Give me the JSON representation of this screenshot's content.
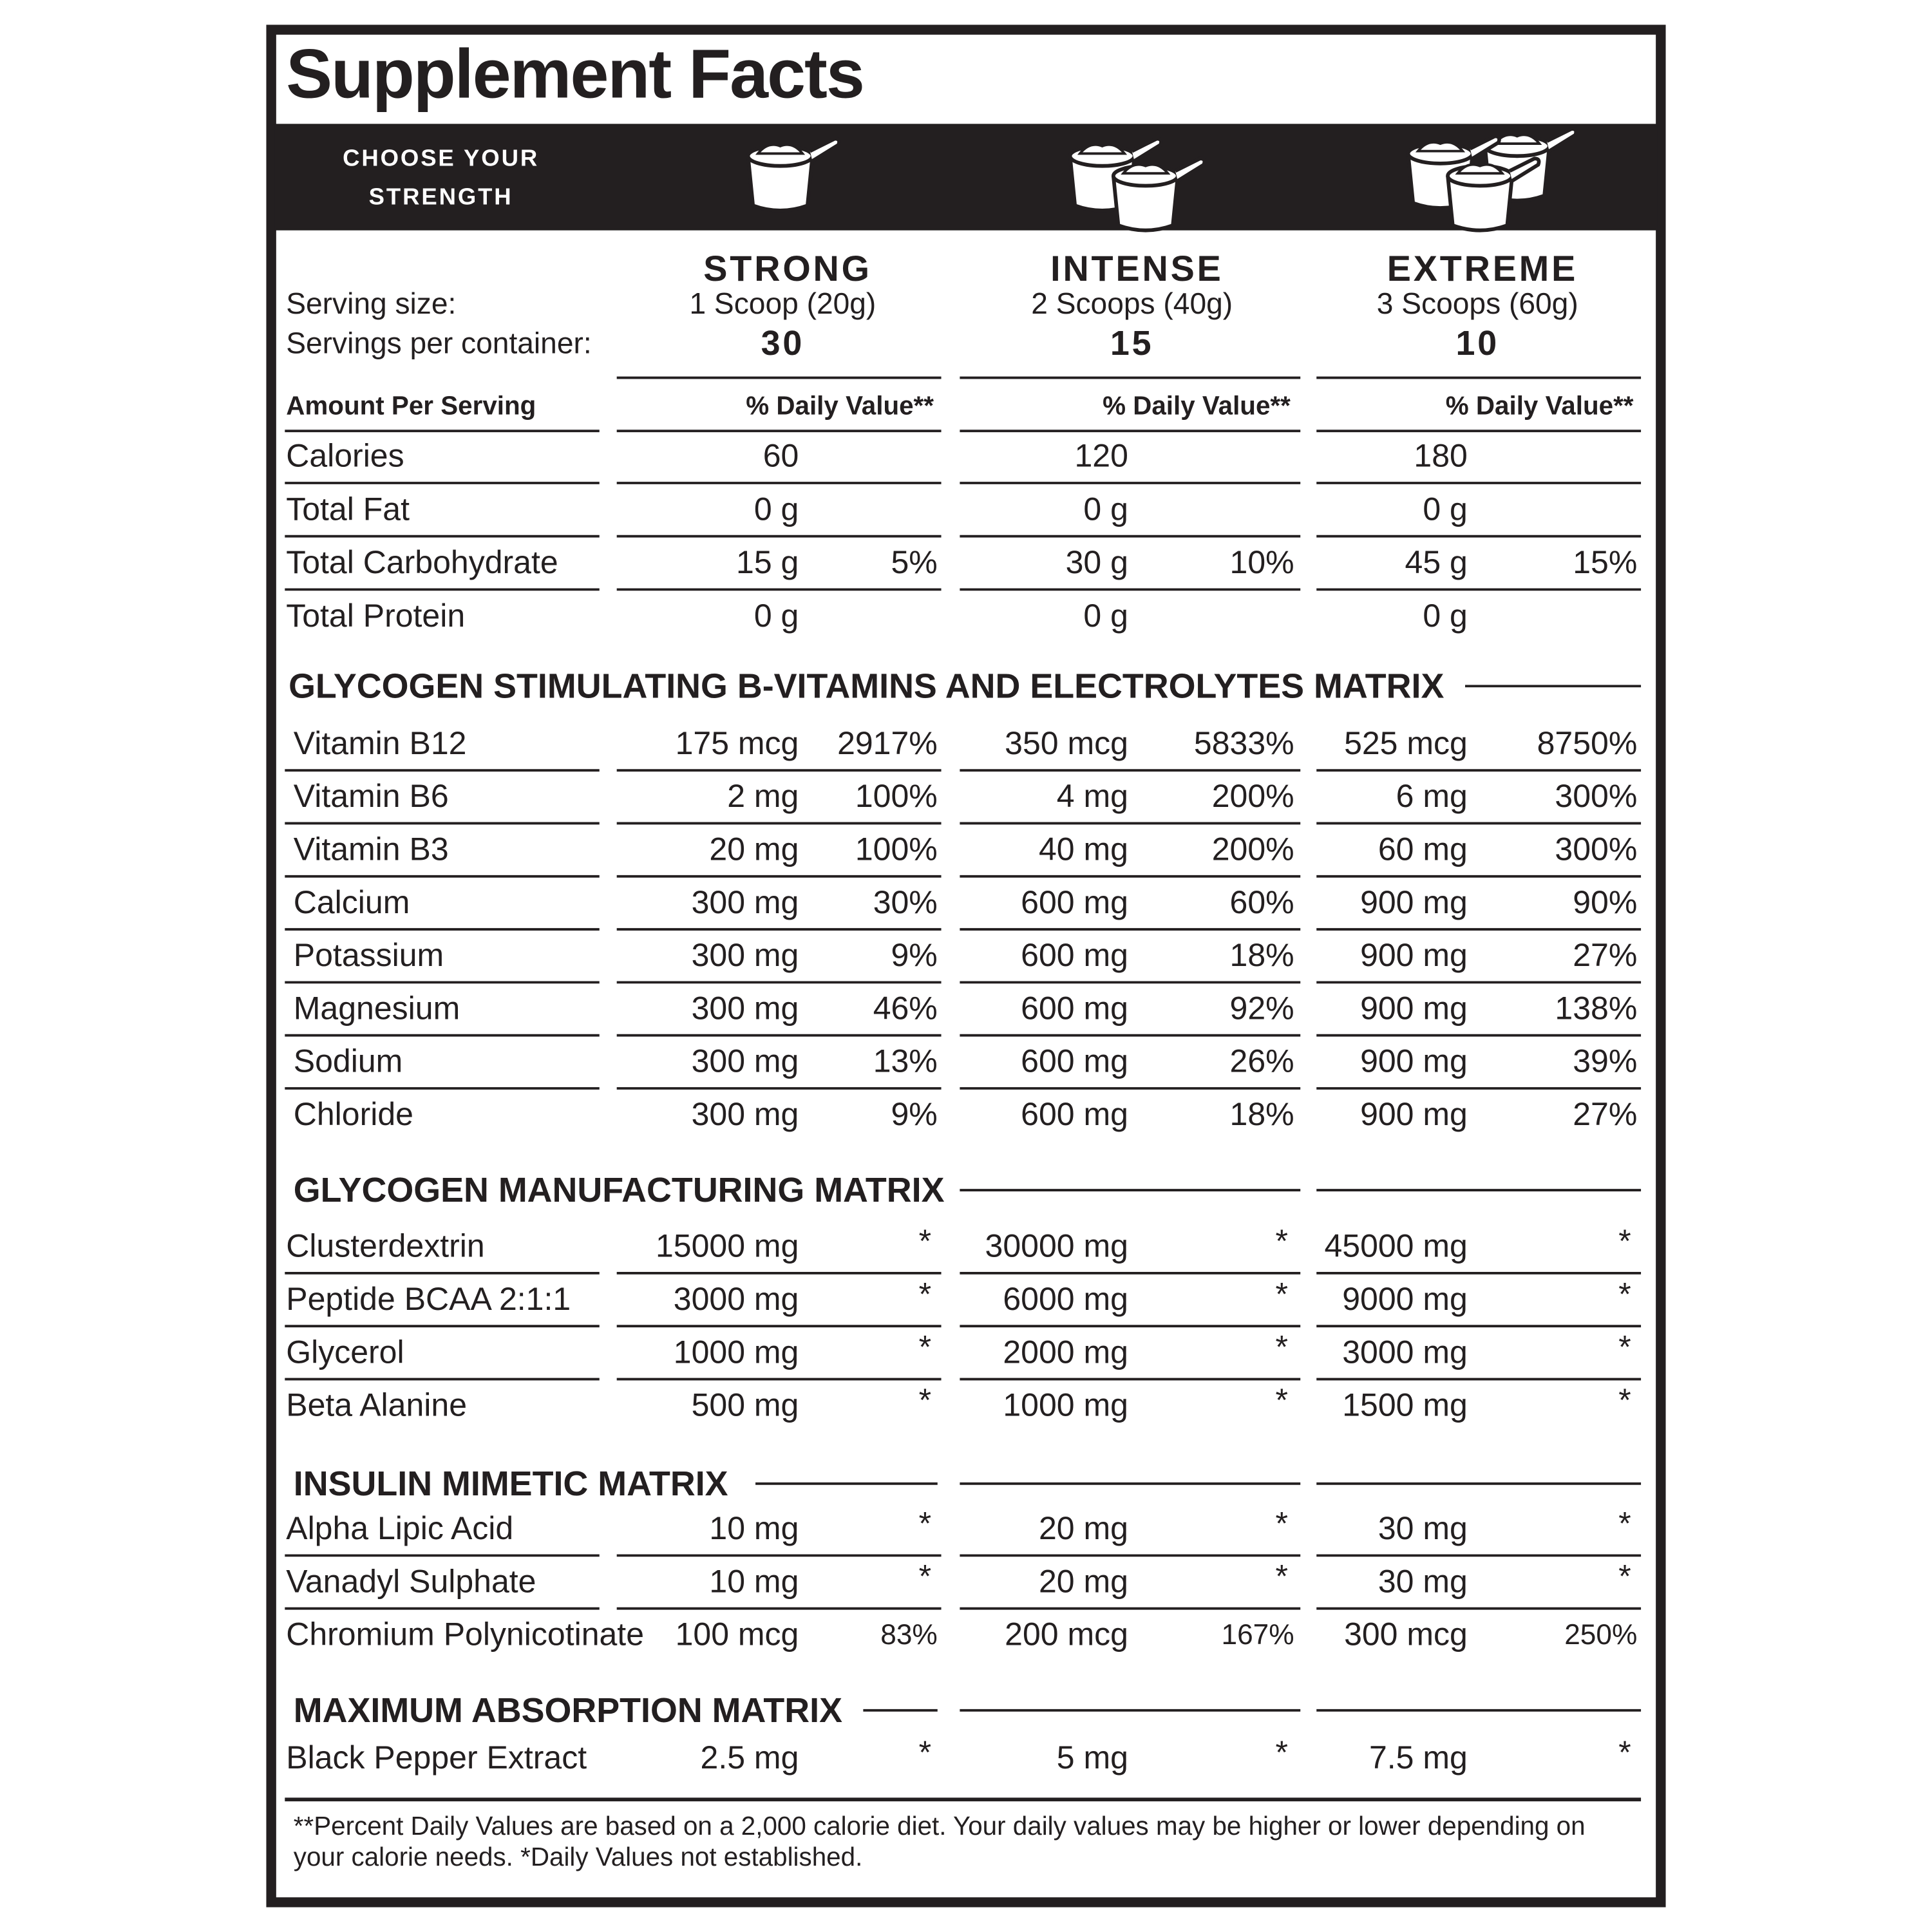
{
  "title": "Supplement Facts",
  "banner": [
    "CHOOSE YOUR",
    "STRENGTH"
  ],
  "labels": {
    "serving_size": "Serving size:",
    "servings_per_container": "Servings per container:",
    "amount_per_serving": "Amount Per Serving",
    "daily_value": "% Daily Value**"
  },
  "columns": [
    {
      "name": "STRONG",
      "serving_size": "1 Scoop (20g)",
      "servings": "30"
    },
    {
      "name": "INTENSE",
      "serving_size": "2 Scoops (40g)",
      "servings": "15"
    },
    {
      "name": "EXTREME",
      "serving_size": "3 Scoops (60g)",
      "servings": "10"
    }
  ],
  "basic": [
    {
      "name": "Calories",
      "values": [
        [
          "60"
        ],
        [
          "120"
        ],
        [
          "180"
        ]
      ]
    },
    {
      "name": "Total Fat",
      "values": [
        [
          "0 g"
        ],
        [
          "0 g"
        ],
        [
          "0 g"
        ]
      ]
    },
    {
      "name": "Total Carbohydrate",
      "values": [
        [
          "15 g",
          "5%"
        ],
        [
          "30 g",
          "10%"
        ],
        [
          "45 g",
          "15%"
        ]
      ]
    },
    {
      "name": "Total Protein",
      "values": [
        [
          "0 g"
        ],
        [
          "0 g"
        ],
        [
          "0 g"
        ]
      ]
    }
  ],
  "sections": [
    {
      "title": "GLYCOGEN STIMULATING B-VITAMINS AND ELECTROLYTES MATRIX",
      "rows": [
        {
          "name": "Vitamin B12",
          "values": [
            [
              "175 mcg",
              "2917%"
            ],
            [
              "350 mcg",
              "5833%"
            ],
            [
              "525 mcg",
              "8750%"
            ]
          ]
        },
        {
          "name": "Vitamin B6",
          "values": [
            [
              "2 mg",
              "100%"
            ],
            [
              "4 mg",
              "200%"
            ],
            [
              "6 mg",
              "300%"
            ]
          ]
        },
        {
          "name": "Vitamin B3",
          "values": [
            [
              "20 mg",
              "100%"
            ],
            [
              "40 mg",
              "200%"
            ],
            [
              "60 mg",
              "300%"
            ]
          ]
        },
        {
          "name": "Calcium",
          "values": [
            [
              "300 mg",
              "30%"
            ],
            [
              "600 mg",
              "60%"
            ],
            [
              "900 mg",
              "90%"
            ]
          ]
        },
        {
          "name": "Potassium",
          "values": [
            [
              "300 mg",
              "9%"
            ],
            [
              "600 mg",
              "18%"
            ],
            [
              "900 mg",
              "27%"
            ]
          ]
        },
        {
          "name": "Magnesium",
          "values": [
            [
              "300 mg",
              "46%"
            ],
            [
              "600 mg",
              "92%"
            ],
            [
              "900 mg",
              "138%"
            ]
          ]
        },
        {
          "name": "Sodium",
          "values": [
            [
              "300 mg",
              "13%"
            ],
            [
              "600 mg",
              "26%"
            ],
            [
              "900 mg",
              "39%"
            ]
          ]
        },
        {
          "name": "Chloride",
          "values": [
            [
              "300 mg",
              "9%"
            ],
            [
              "600 mg",
              "18%"
            ],
            [
              "900 mg",
              "27%"
            ]
          ]
        }
      ]
    },
    {
      "title": "GLYCOGEN MANUFACTURING MATRIX",
      "rows": [
        {
          "name": "Clusterdextrin",
          "values": [
            [
              "15000 mg",
              "*"
            ],
            [
              "30000 mg",
              "*"
            ],
            [
              "45000 mg",
              "*"
            ]
          ]
        },
        {
          "name": "Peptide BCAA 2:1:1",
          "values": [
            [
              "3000 mg",
              "*"
            ],
            [
              "6000 mg",
              "*"
            ],
            [
              "9000 mg",
              "*"
            ]
          ]
        },
        {
          "name": "Glycerol",
          "values": [
            [
              "1000 mg",
              "*"
            ],
            [
              "2000 mg",
              "*"
            ],
            [
              "3000 mg",
              "*"
            ]
          ]
        },
        {
          "name": "Beta Alanine",
          "values": [
            [
              "500 mg",
              "*"
            ],
            [
              "1000 mg",
              "*"
            ],
            [
              "1500 mg",
              "*"
            ]
          ]
        }
      ]
    },
    {
      "title": "INSULIN MIMETIC MATRIX",
      "rows": [
        {
          "name": "Alpha Lipic Acid",
          "values": [
            [
              "10 mg",
              "*"
            ],
            [
              "20 mg",
              "*"
            ],
            [
              "30 mg",
              "*"
            ]
          ]
        },
        {
          "name": "Vanadyl Sulphate",
          "values": [
            [
              "10 mg",
              "*"
            ],
            [
              "20 mg",
              "*"
            ],
            [
              "30 mg",
              "*"
            ]
          ]
        },
        {
          "name": "Chromium Polynicotinate",
          "values": [
            [
              "100 mcg",
              "83%"
            ],
            [
              "200 mcg",
              "167%"
            ],
            [
              "300 mcg",
              "250%"
            ]
          ]
        }
      ]
    },
    {
      "title": "MAXIMUM ABSORPTION MATRIX",
      "rows": [
        {
          "name": "Black Pepper Extract",
          "values": [
            [
              "2.5 mg",
              "*"
            ],
            [
              "5 mg",
              "*"
            ],
            [
              "7.5 mg",
              "*"
            ]
          ]
        }
      ]
    }
  ],
  "footnote": [
    "**Percent Daily Values are based on a 2,000 calorie diet. Your daily values may be higher or lower depending on",
    "your calorie needs. *Daily Values not established."
  ]
}
